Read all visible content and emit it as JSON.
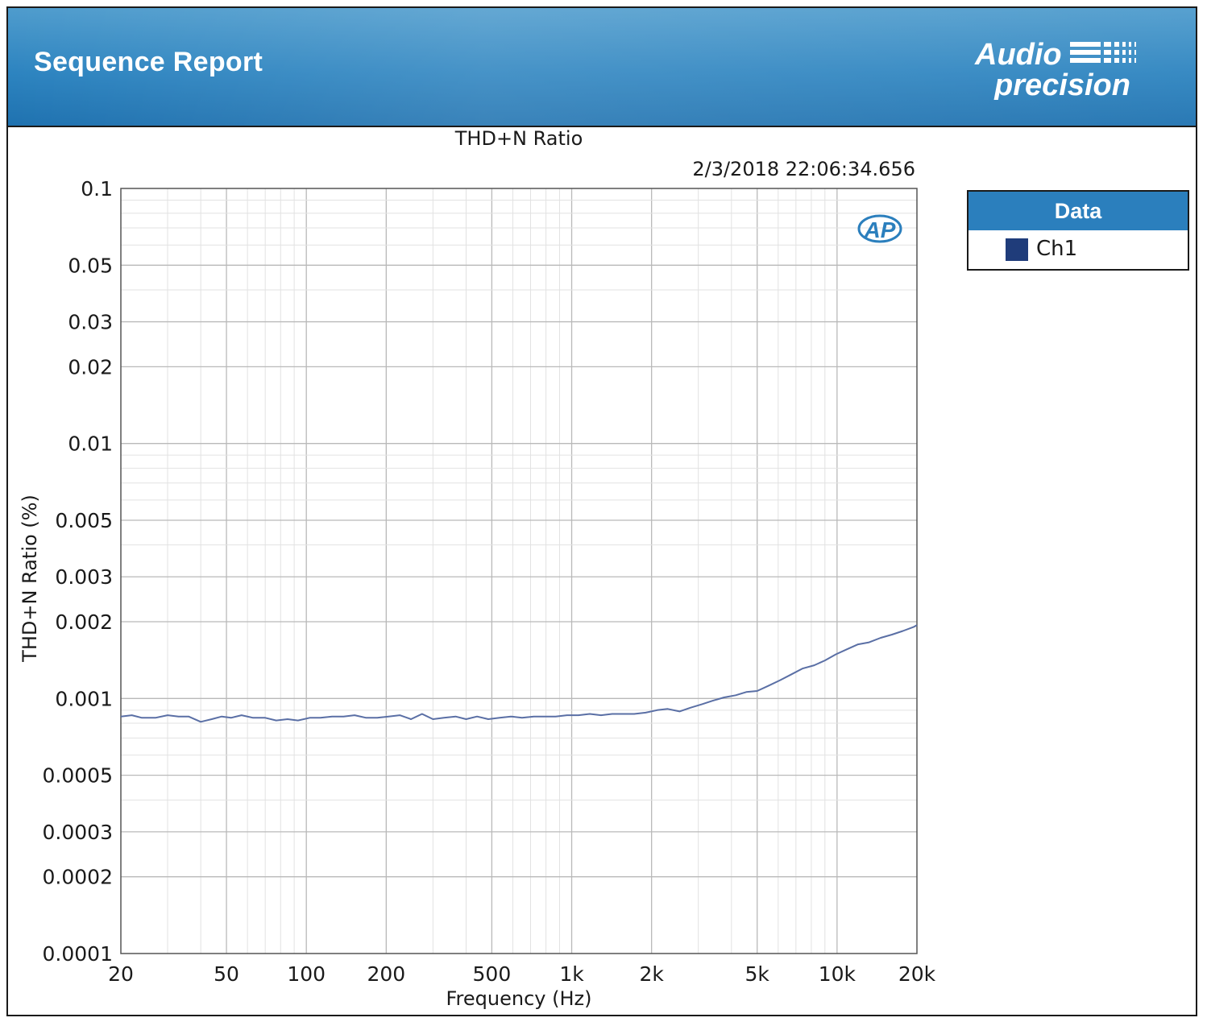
{
  "header": {
    "title": "Sequence Report",
    "logo_text_line1": "Audio",
    "logo_text_line2": "precision"
  },
  "colors": {
    "banner": "#2d84c0",
    "legend_header": "#2b7fbd",
    "series": "#5a6fa5",
    "swatch": "#1f3c7a",
    "grid": "#cfcfcf"
  },
  "watermark_text": "AP",
  "chart_data": {
    "type": "line",
    "title": "THD+N Ratio",
    "timestamp": "2/3/2018 22:06:34.656",
    "xlabel": "Frequency (Hz)",
    "ylabel": "THD+N Ratio (%)",
    "xscale": "log",
    "yscale": "log",
    "xlim": [
      20,
      20000
    ],
    "ylim": [
      0.0001,
      0.1
    ],
    "grid": true,
    "legend_position": "right",
    "x_ticks": [
      {
        "value": 20,
        "label": "20"
      },
      {
        "value": 50,
        "label": "50"
      },
      {
        "value": 100,
        "label": "100"
      },
      {
        "value": 200,
        "label": "200"
      },
      {
        "value": 500,
        "label": "500"
      },
      {
        "value": 1000,
        "label": "1k"
      },
      {
        "value": 2000,
        "label": "2k"
      },
      {
        "value": 5000,
        "label": "5k"
      },
      {
        "value": 10000,
        "label": "10k"
      },
      {
        "value": 20000,
        "label": "20k"
      }
    ],
    "y_ticks": [
      {
        "value": 0.1,
        "label": "0.1"
      },
      {
        "value": 0.05,
        "label": "0.05"
      },
      {
        "value": 0.03,
        "label": "0.03"
      },
      {
        "value": 0.02,
        "label": "0.02"
      },
      {
        "value": 0.01,
        "label": "0.01"
      },
      {
        "value": 0.005,
        "label": "0.005"
      },
      {
        "value": 0.003,
        "label": "0.003"
      },
      {
        "value": 0.002,
        "label": "0.002"
      },
      {
        "value": 0.001,
        "label": "0.001"
      },
      {
        "value": 0.0005,
        "label": "0.0005"
      },
      {
        "value": 0.0003,
        "label": "0.0003"
      },
      {
        "value": 0.0002,
        "label": "0.0002"
      },
      {
        "value": 0.0001,
        "label": "0.0001"
      }
    ],
    "legend_title": "Data",
    "series": [
      {
        "name": "Ch1",
        "x": [
          20,
          22,
          24,
          27,
          30,
          33,
          36,
          40,
          44,
          48,
          52,
          57,
          63,
          70,
          77,
          85,
          93,
          103,
          113,
          125,
          138,
          152,
          168,
          185,
          204,
          225,
          248,
          273,
          300,
          330,
          365,
          400,
          440,
          485,
          535,
          590,
          650,
          720,
          790,
          870,
          960,
          1060,
          1170,
          1290,
          1420,
          1560,
          1720,
          1900,
          2100,
          2300,
          2550,
          2800,
          3100,
          3400,
          3750,
          4150,
          4550,
          5000,
          5500,
          6100,
          6700,
          7400,
          8200,
          9000,
          9900,
          10900,
          12000,
          13200,
          14600,
          16100,
          17700,
          19500,
          20000
        ],
        "values": [
          0.00085,
          0.00086,
          0.00084,
          0.00084,
          0.00086,
          0.00085,
          0.00085,
          0.00081,
          0.00083,
          0.00085,
          0.00084,
          0.00086,
          0.00084,
          0.00084,
          0.00082,
          0.00083,
          0.00082,
          0.00084,
          0.00084,
          0.00085,
          0.00085,
          0.00086,
          0.00084,
          0.00084,
          0.00085,
          0.00086,
          0.00083,
          0.00087,
          0.00083,
          0.00084,
          0.00085,
          0.00083,
          0.00085,
          0.00083,
          0.00084,
          0.00085,
          0.00084,
          0.00085,
          0.00085,
          0.00085,
          0.00086,
          0.00086,
          0.00087,
          0.00086,
          0.00087,
          0.00087,
          0.00087,
          0.00088,
          0.0009,
          0.00091,
          0.00089,
          0.00092,
          0.00095,
          0.00098,
          0.00101,
          0.00103,
          0.00106,
          0.00107,
          0.00112,
          0.00118,
          0.00124,
          0.00131,
          0.00135,
          0.00141,
          0.00149,
          0.00156,
          0.00163,
          0.00166,
          0.00173,
          0.00178,
          0.00184,
          0.00191,
          0.00194
        ]
      }
    ]
  }
}
